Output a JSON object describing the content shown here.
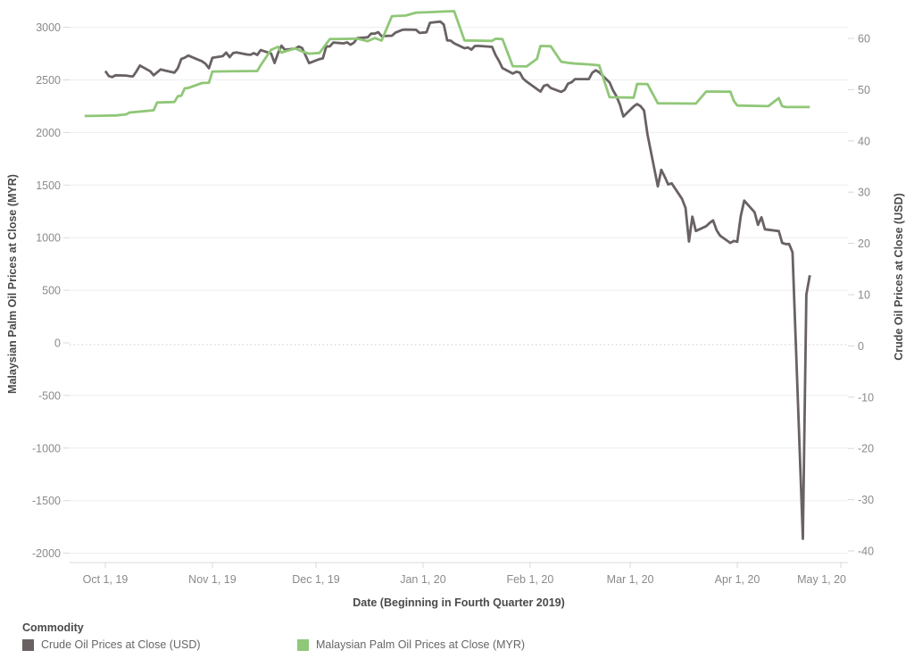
{
  "chart_data": {
    "type": "line",
    "title": "",
    "x_axis": {
      "label": "Date (Beginning in Fourth Quarter 2019)",
      "tick_labels": [
        "Oct 1, 19",
        "Nov 1, 19",
        "Dec 1, 19",
        "Jan 1, 20",
        "Feb 1, 20",
        "Mar 1, 20",
        "Apr 1, 20",
        "May 1, 20"
      ],
      "tick_dates": [
        "2019-10-01",
        "2019-11-01",
        "2019-12-01",
        "2020-01-01",
        "2020-02-01",
        "2020-03-01",
        "2020-04-01",
        "2020-05-01"
      ]
    },
    "left_axis": {
      "label": "Malaysian Palm Oil Prices at Close (MYR)",
      "ticks": [
        3000,
        2500,
        2000,
        1500,
        1000,
        500,
        0,
        -500,
        -1000,
        -1500,
        -2000
      ],
      "range": [
        -2100,
        3200
      ]
    },
    "right_axis": {
      "label": "Crude Oil Prices at Close (USD)",
      "ticks": [
        60,
        50,
        40,
        30,
        20,
        10,
        0,
        -10,
        -20,
        -30,
        -40
      ],
      "range": [
        -42,
        63
      ]
    },
    "grid": "horizontal-light, dotted zero line",
    "legend": {
      "title": "Commodity",
      "position": "bottom-left",
      "items": [
        {
          "label": "Crude Oil Prices at Close (USD)",
          "color": "#696162"
        },
        {
          "label": "Malaysian Palm Oil Prices at Close (MYR)",
          "color": "#90C778"
        }
      ]
    },
    "series": [
      {
        "name": "Crude Oil Prices at Close (USD)",
        "axis": "right",
        "color": "#696162",
        "points": [
          [
            "2019-10-01",
            53.62
          ],
          [
            "2019-10-02",
            52.64
          ],
          [
            "2019-10-03",
            52.45
          ],
          [
            "2019-10-04",
            52.81
          ],
          [
            "2019-10-07",
            52.75
          ],
          [
            "2019-10-08",
            52.63
          ],
          [
            "2019-10-09",
            52.59
          ],
          [
            "2019-10-10",
            53.55
          ],
          [
            "2019-10-11",
            54.7
          ],
          [
            "2019-10-14",
            53.59
          ],
          [
            "2019-10-15",
            52.81
          ],
          [
            "2019-10-16",
            53.36
          ],
          [
            "2019-10-17",
            53.93
          ],
          [
            "2019-10-18",
            53.78
          ],
          [
            "2019-10-21",
            53.31
          ],
          [
            "2019-10-22",
            54.16
          ],
          [
            "2019-10-23",
            55.97
          ],
          [
            "2019-10-24",
            56.23
          ],
          [
            "2019-10-25",
            56.66
          ],
          [
            "2019-10-28",
            55.81
          ],
          [
            "2019-10-29",
            55.54
          ],
          [
            "2019-10-30",
            55.06
          ],
          [
            "2019-10-31",
            54.18
          ],
          [
            "2019-11-01",
            56.2
          ],
          [
            "2019-11-04",
            56.54
          ],
          [
            "2019-11-05",
            57.23
          ],
          [
            "2019-11-06",
            56.35
          ],
          [
            "2019-11-07",
            57.15
          ],
          [
            "2019-11-08",
            57.24
          ],
          [
            "2019-11-11",
            56.86
          ],
          [
            "2019-11-12",
            56.8
          ],
          [
            "2019-11-13",
            57.12
          ],
          [
            "2019-11-14",
            56.77
          ],
          [
            "2019-11-15",
            57.72
          ],
          [
            "2019-11-18",
            57.05
          ],
          [
            "2019-11-19",
            55.21
          ],
          [
            "2019-11-20",
            57.11
          ],
          [
            "2019-11-21",
            58.58
          ],
          [
            "2019-11-22",
            57.77
          ],
          [
            "2019-11-25",
            58.01
          ],
          [
            "2019-11-26",
            58.41
          ],
          [
            "2019-11-27",
            58.11
          ],
          [
            "2019-11-29",
            55.17
          ],
          [
            "2019-12-02",
            55.96
          ],
          [
            "2019-12-03",
            56.1
          ],
          [
            "2019-12-04",
            58.43
          ],
          [
            "2019-12-05",
            58.43
          ],
          [
            "2019-12-06",
            59.2
          ],
          [
            "2019-12-09",
            59.02
          ],
          [
            "2019-12-10",
            59.24
          ],
          [
            "2019-12-11",
            58.76
          ],
          [
            "2019-12-12",
            59.18
          ],
          [
            "2019-12-13",
            60.07
          ],
          [
            "2019-12-16",
            60.21
          ],
          [
            "2019-12-17",
            60.94
          ],
          [
            "2019-12-18",
            60.93
          ],
          [
            "2019-12-19",
            61.22
          ],
          [
            "2019-12-20",
            60.44
          ],
          [
            "2019-12-23",
            60.52
          ],
          [
            "2019-12-24",
            61.11
          ],
          [
            "2019-12-26",
            61.68
          ],
          [
            "2019-12-27",
            61.72
          ],
          [
            "2019-12-30",
            61.68
          ],
          [
            "2019-12-31",
            61.06
          ],
          [
            "2020-01-02",
            61.18
          ],
          [
            "2020-01-03",
            63.05
          ],
          [
            "2020-01-06",
            63.27
          ],
          [
            "2020-01-07",
            62.7
          ],
          [
            "2020-01-08",
            59.61
          ],
          [
            "2020-01-09",
            59.56
          ],
          [
            "2020-01-10",
            59.04
          ],
          [
            "2020-01-13",
            58.08
          ],
          [
            "2020-01-14",
            58.23
          ],
          [
            "2020-01-15",
            57.81
          ],
          [
            "2020-01-16",
            58.52
          ],
          [
            "2020-01-17",
            58.54
          ],
          [
            "2020-01-21",
            58.34
          ],
          [
            "2020-01-22",
            56.74
          ],
          [
            "2020-01-23",
            55.59
          ],
          [
            "2020-01-24",
            54.19
          ],
          [
            "2020-01-27",
            53.14
          ],
          [
            "2020-01-28",
            53.48
          ],
          [
            "2020-01-29",
            53.33
          ],
          [
            "2020-01-30",
            52.14
          ],
          [
            "2020-01-31",
            51.56
          ],
          [
            "2020-02-03",
            50.11
          ],
          [
            "2020-02-04",
            49.61
          ],
          [
            "2020-02-05",
            50.75
          ],
          [
            "2020-02-06",
            50.95
          ],
          [
            "2020-02-07",
            50.32
          ],
          [
            "2020-02-10",
            49.57
          ],
          [
            "2020-02-11",
            49.94
          ],
          [
            "2020-02-12",
            51.17
          ],
          [
            "2020-02-13",
            51.42
          ],
          [
            "2020-02-14",
            52.05
          ],
          [
            "2020-02-18",
            52.05
          ],
          [
            "2020-02-19",
            53.29
          ],
          [
            "2020-02-20",
            53.78
          ],
          [
            "2020-02-21",
            53.38
          ],
          [
            "2020-02-24",
            51.43
          ],
          [
            "2020-02-25",
            49.9
          ],
          [
            "2020-02-26",
            48.73
          ],
          [
            "2020-02-27",
            47.09
          ],
          [
            "2020-02-28",
            44.76
          ],
          [
            "2020-03-02",
            46.75
          ],
          [
            "2020-03-03",
            47.18
          ],
          [
            "2020-03-04",
            46.78
          ],
          [
            "2020-03-05",
            45.9
          ],
          [
            "2020-03-06",
            41.28
          ],
          [
            "2020-03-09",
            31.13
          ],
          [
            "2020-03-10",
            34.36
          ],
          [
            "2020-03-11",
            32.98
          ],
          [
            "2020-03-12",
            31.5
          ],
          [
            "2020-03-13",
            31.73
          ],
          [
            "2020-03-16",
            28.7
          ],
          [
            "2020-03-17",
            26.95
          ],
          [
            "2020-03-18",
            20.37
          ],
          [
            "2020-03-19",
            25.22
          ],
          [
            "2020-03-20",
            22.43
          ],
          [
            "2020-03-23",
            23.36
          ],
          [
            "2020-03-24",
            24.01
          ],
          [
            "2020-03-25",
            24.49
          ],
          [
            "2020-03-26",
            22.6
          ],
          [
            "2020-03-27",
            21.51
          ],
          [
            "2020-03-30",
            20.09
          ],
          [
            "2020-03-31",
            20.48
          ],
          [
            "2020-04-01",
            20.31
          ],
          [
            "2020-04-02",
            25.32
          ],
          [
            "2020-04-03",
            28.34
          ],
          [
            "2020-04-06",
            26.08
          ],
          [
            "2020-04-07",
            23.63
          ],
          [
            "2020-04-08",
            25.09
          ],
          [
            "2020-04-09",
            22.76
          ],
          [
            "2020-04-13",
            22.41
          ],
          [
            "2020-04-14",
            20.11
          ],
          [
            "2020-04-15",
            19.87
          ],
          [
            "2020-04-16",
            19.87
          ],
          [
            "2020-04-17",
            18.27
          ],
          [
            "2020-04-20",
            -37.63
          ],
          [
            "2020-04-21",
            10.01
          ],
          [
            "2020-04-22",
            13.78
          ]
        ]
      },
      {
        "name": "Malaysian Palm Oil Prices at Close (MYR)",
        "axis": "left",
        "color": "#90C778",
        "points": [
          [
            "2019-09-25",
            2157
          ],
          [
            "2019-09-30",
            2160
          ],
          [
            "2019-10-04",
            2162
          ],
          [
            "2019-10-07",
            2172
          ],
          [
            "2019-10-08",
            2190
          ],
          [
            "2019-10-10",
            2196
          ],
          [
            "2019-10-14",
            2208
          ],
          [
            "2019-10-15",
            2212
          ],
          [
            "2019-10-16",
            2285
          ],
          [
            "2019-10-21",
            2290
          ],
          [
            "2019-10-22",
            2345
          ],
          [
            "2019-10-23",
            2350
          ],
          [
            "2019-10-24",
            2420
          ],
          [
            "2019-10-25",
            2424
          ],
          [
            "2019-10-29",
            2470
          ],
          [
            "2019-10-31",
            2474
          ],
          [
            "2019-11-01",
            2580
          ],
          [
            "2019-11-14",
            2585
          ],
          [
            "2019-11-15",
            2640
          ],
          [
            "2019-11-18",
            2785
          ],
          [
            "2019-11-20",
            2815
          ],
          [
            "2019-11-21",
            2760
          ],
          [
            "2019-11-25",
            2800
          ],
          [
            "2019-11-27",
            2770
          ],
          [
            "2019-11-29",
            2750
          ],
          [
            "2019-12-02",
            2756
          ],
          [
            "2019-12-05",
            2888
          ],
          [
            "2019-12-13",
            2892
          ],
          [
            "2019-12-16",
            2868
          ],
          [
            "2019-12-18",
            2898
          ],
          [
            "2019-12-20",
            2874
          ],
          [
            "2019-12-23",
            3106
          ],
          [
            "2019-12-27",
            3112
          ],
          [
            "2019-12-30",
            3140
          ],
          [
            "2020-01-03",
            3144
          ],
          [
            "2020-01-07",
            3150
          ],
          [
            "2020-01-10",
            3154
          ],
          [
            "2020-01-13",
            2875
          ],
          [
            "2020-01-21",
            2871
          ],
          [
            "2020-01-22",
            2891
          ],
          [
            "2020-01-24",
            2888
          ],
          [
            "2020-01-27",
            2631
          ],
          [
            "2020-01-31",
            2628
          ],
          [
            "2020-02-03",
            2700
          ],
          [
            "2020-02-04",
            2823
          ],
          [
            "2020-02-07",
            2820
          ],
          [
            "2020-02-10",
            2673
          ],
          [
            "2020-02-12",
            2662
          ],
          [
            "2020-02-14",
            2655
          ],
          [
            "2020-02-18",
            2648
          ],
          [
            "2020-02-21",
            2638
          ],
          [
            "2020-02-24",
            2335
          ],
          [
            "2020-03-02",
            2332
          ],
          [
            "2020-03-03",
            2462
          ],
          [
            "2020-03-06",
            2460
          ],
          [
            "2020-03-09",
            2278
          ],
          [
            "2020-03-20",
            2275
          ],
          [
            "2020-03-23",
            2390
          ],
          [
            "2020-03-30",
            2388
          ],
          [
            "2020-03-31",
            2300
          ],
          [
            "2020-04-01",
            2256
          ],
          [
            "2020-04-10",
            2250
          ],
          [
            "2020-04-13",
            2327
          ],
          [
            "2020-04-14",
            2250
          ],
          [
            "2020-04-15",
            2242
          ],
          [
            "2020-04-22",
            2242
          ]
        ]
      }
    ]
  },
  "colors": {
    "gridline": "#ededed",
    "zero_line": "#c9c9c9",
    "axis_line": "#d8d8d8",
    "tick_label": "#8a8a8a",
    "axis_title": "#4a4a4a"
  }
}
